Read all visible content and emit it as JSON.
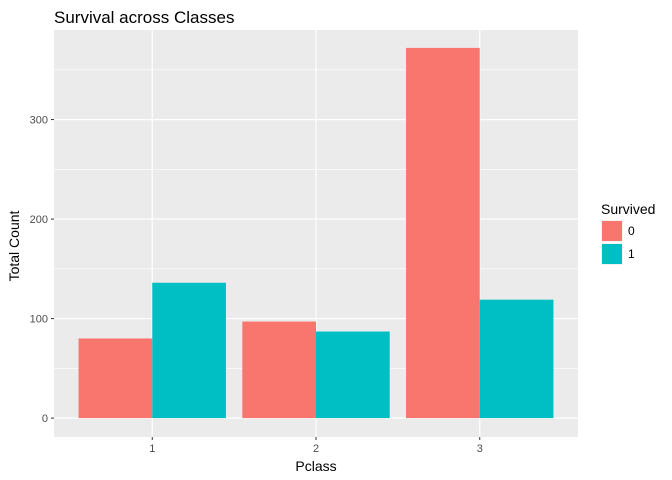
{
  "chart_data": {
    "type": "bar",
    "title": "Survival across Classes",
    "xlabel": "Pclass",
    "ylabel": "Total Count",
    "categories": [
      "1",
      "2",
      "3"
    ],
    "series": [
      {
        "name": "0",
        "values": [
          80,
          97,
          372
        ],
        "color": "#F8766D"
      },
      {
        "name": "1",
        "values": [
          136,
          87,
          119
        ],
        "color": "#00BFC4"
      }
    ],
    "ylim": [
      -19,
      390
    ],
    "yticks": [
      0,
      100,
      200,
      300
    ],
    "ytick_labels": [
      "0",
      "100",
      "200",
      "300"
    ],
    "grid": true,
    "panel_background": "#EBEBEB",
    "legend": {
      "title": "Survived",
      "position": "right"
    }
  }
}
